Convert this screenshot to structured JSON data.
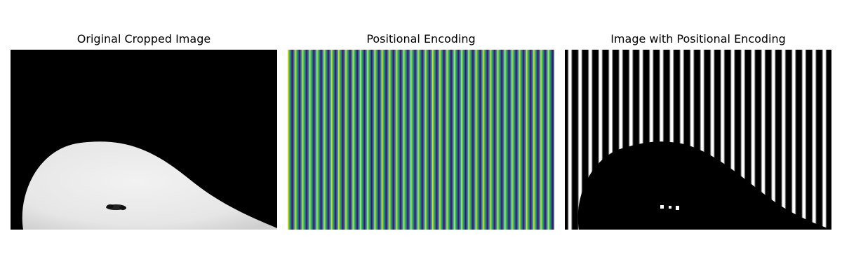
{
  "figure": {
    "panels": [
      {
        "title": "Original Cropped Image"
      },
      {
        "title": "Positional Encoding"
      },
      {
        "title": "Image with Positional Encoding"
      }
    ]
  },
  "colors": {
    "background": "#ffffff",
    "image_black": "#000000",
    "blob_gray": "#eaeaea",
    "viridis_dark": "#440154",
    "viridis_blue": "#31688e",
    "viridis_teal": "#35b779",
    "viridis_yellow": "#fde725"
  }
}
